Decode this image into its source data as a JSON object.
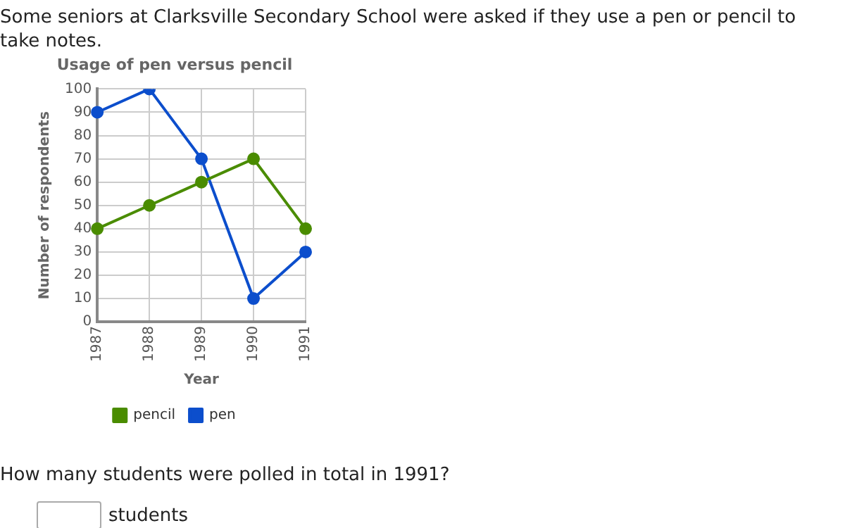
{
  "chart_data": {
    "type": "line",
    "title": "Usage of pen versus pencil",
    "xlabel": "Year",
    "ylabel": "Number of respondents",
    "categories": [
      "1987",
      "1988",
      "1989",
      "1990",
      "1991"
    ],
    "series": [
      {
        "name": "pencil",
        "color": "#4a8c00",
        "values": [
          40,
          50,
          60,
          70,
          40
        ]
      },
      {
        "name": "pen",
        "color": "#0c4ecc",
        "values": [
          90,
          100,
          70,
          10,
          30
        ]
      }
    ],
    "ylim": [
      0,
      100
    ],
    "yticks": [
      0,
      10,
      20,
      30,
      40,
      50,
      60,
      70,
      80,
      90,
      100
    ],
    "grid": true,
    "legend": "bottom",
    "marker": "circle",
    "line_style": "solid",
    "annotations": [
      "Some seniors at Clarksville Secondary School were asked if they use a pen or pencil to take notes.",
      "How many students were polled in total in 1991?",
      "students"
    ]
  }
}
